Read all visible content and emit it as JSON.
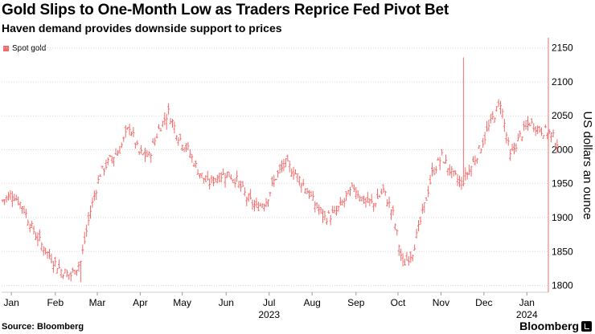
{
  "title": "Gold Slips to One-Month Low as Traders Reprice Fed Pivot Bet",
  "subtitle": "Haven demand provides downside support to prices",
  "source": "Source: Bloomberg",
  "brand": "Bloomberg",
  "colors": {
    "series": "#f26b6b",
    "grid": "#d9d9d9",
    "axis": "#f26b6b"
  },
  "chart_data": {
    "type": "ohlc",
    "legend": "Spot gold",
    "ylabel": "US dollars an ounce",
    "ylim": [
      1790,
      2165
    ],
    "yticks": [
      1800,
      1850,
      1900,
      1950,
      2000,
      2050,
      2100,
      2150
    ],
    "xticks": [
      {
        "label": "Jan",
        "week": 1
      },
      {
        "label": "Feb",
        "week": 5.5
      },
      {
        "label": "Mar",
        "week": 9.8
      },
      {
        "label": "Apr",
        "week": 14.2
      },
      {
        "label": "May",
        "week": 18.5
      },
      {
        "label": "Jun",
        "week": 23.0
      },
      {
        "label": "Jul",
        "week": 27.4
      },
      {
        "label": "Aug",
        "week": 31.8
      },
      {
        "label": "Sep",
        "week": 36.3
      },
      {
        "label": "Oct",
        "week": 40.6
      },
      {
        "label": "Nov",
        "week": 45.0
      },
      {
        "label": "Dec",
        "week": 49.4
      },
      {
        "label": "Jan",
        "week": 53.8
      }
    ],
    "year_labels": [
      {
        "label": "2023",
        "week": 27.4
      },
      {
        "label": "2024",
        "week": 53.8
      }
    ],
    "weekly_close": [
      1925,
      1935,
      1918,
      1885,
      1860,
      1840,
      1822,
      1815,
      1835,
      1910,
      1965,
      1985,
      2000,
      2035,
      1995,
      1990,
      2030,
      2055,
      2020,
      2000,
      1970,
      1950,
      1960,
      1965,
      1955,
      1930,
      1915,
      1925,
      1960,
      1980,
      1965,
      1945,
      1920,
      1900,
      1905,
      1925,
      1945,
      1925,
      1920,
      1940,
      1905,
      1830,
      1850,
      1905,
      1965,
      1990,
      1965,
      1950,
      1975,
      2005,
      2040,
      2070,
      1990,
      2020,
      2040,
      2030,
      2025,
      2008
    ],
    "spike": {
      "week": 47.2,
      "high": 2136
    },
    "low_point": {
      "week": 8,
      "low": 1805
    }
  }
}
